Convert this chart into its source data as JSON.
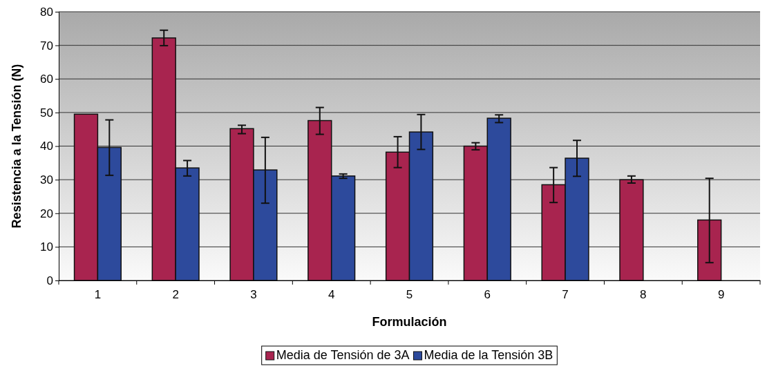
{
  "chart_data": {
    "type": "bar",
    "xlabel": "Formulación",
    "ylabel": "Resistencia a la Tensión (N)",
    "categories": [
      "1",
      "2",
      "3",
      "4",
      "5",
      "6",
      "7",
      "8",
      "9"
    ],
    "ylim": [
      0,
      80
    ],
    "yticks": [
      0,
      10,
      20,
      30,
      40,
      50,
      60,
      70,
      80
    ],
    "grid": "y",
    "legend": "bottom",
    "series": [
      {
        "name": "Media de Tensión de 3A",
        "color": "#a8244f",
        "values": [
          49.5,
          72.2,
          45.2,
          47.6,
          38.2,
          40,
          28.5,
          30,
          18
        ],
        "errors": [
          null,
          [
            69.9,
            74.5
          ],
          [
            43.7,
            46.2
          ],
          [
            43.5,
            51.5
          ],
          [
            33.6,
            42.8
          ],
          [
            38.9,
            41
          ],
          [
            23.2,
            33.6
          ],
          [
            29,
            31.1
          ],
          [
            5.3,
            30.4
          ]
        ]
      },
      {
        "name": "Media de la Tensión 3B",
        "color": "#2d4a9c",
        "values": [
          39.6,
          33.5,
          32.9,
          31.1,
          44.2,
          48.3,
          36.4,
          null,
          null
        ],
        "errors": [
          [
            31.3,
            47.8
          ],
          [
            31.1,
            35.7
          ],
          [
            23,
            42.6
          ],
          [
            30.4,
            31.7
          ],
          [
            39,
            49.4
          ],
          [
            47,
            49.3
          ],
          [
            31,
            41.7
          ],
          null,
          null
        ]
      }
    ]
  }
}
